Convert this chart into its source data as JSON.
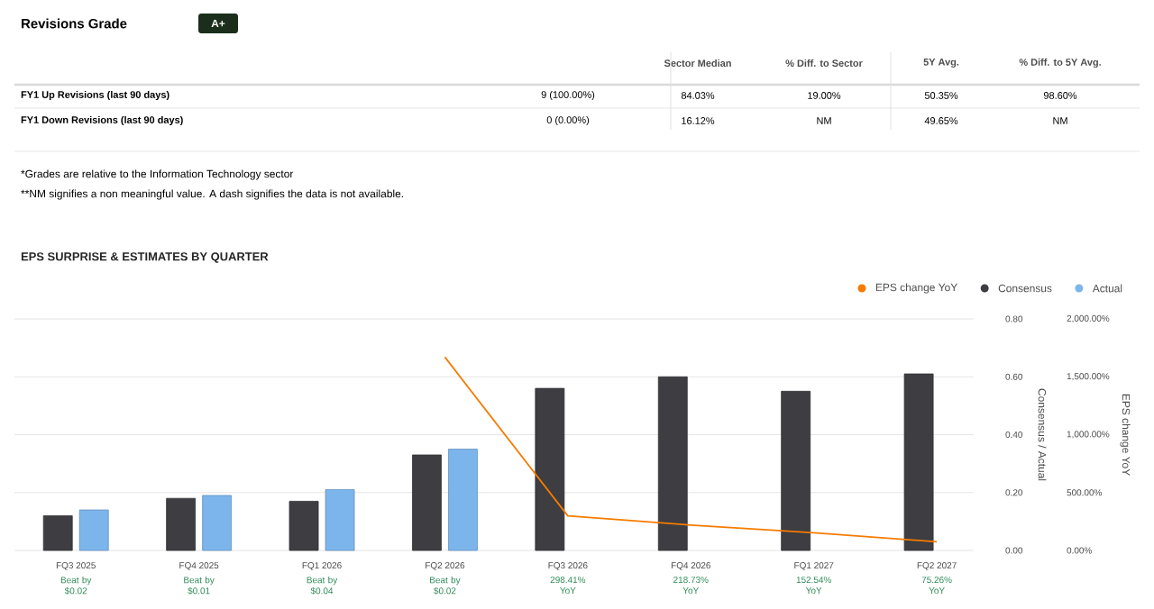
{
  "chart_data": [
    {
      "type": "other",
      "title": "Revisions Grade",
      "annotations": [
        "A+",
        "Sector Median",
        "% Diff. to Sector",
        "5Y Avg.",
        "% Diff. to 5Y Avg.",
        "FY1 Up Revisions (last 90 days)",
        "9 (100.00%)",
        "84.03%",
        "19.00%",
        "50.35%",
        "98.60%",
        "FY1 Down Revisions (last 90 days)",
        "0 (0.00%)",
        "16.12%",
        "NM",
        "49.65%",
        "NM",
        "*Grades are relative to the Information Technology sector",
        "**NM signifies a non meaningful value. A dash signifies the data is not available."
      ]
    },
    {
      "type": "bar",
      "title": "EPS SURPRISE & ESTIMATES BY QUARTER",
      "categories": [
        "FQ3 2025",
        "FQ4 2025",
        "FQ1 2026",
        "FQ2 2026",
        "FQ3 2026",
        "FQ4 2026",
        "FQ1 2027",
        "FQ2 2027"
      ],
      "series": [
        {
          "name": "EPS change YoY",
          "type": "line",
          "axis": "y2",
          "color": "#f57c00",
          "values": [
            null,
            null,
            null,
            1670,
            298.41,
            218.73,
            152.54,
            75.26
          ]
        },
        {
          "name": "Consensus",
          "color": "#3d3d42",
          "values": [
            0.12,
            0.18,
            0.17,
            0.33,
            0.56,
            0.6,
            0.55,
            0.61
          ]
        },
        {
          "name": "Actual",
          "color": "#7cb5ec",
          "values": [
            0.14,
            0.19,
            0.21,
            0.35,
            null,
            null,
            null,
            null
          ]
        }
      ],
      "ylim": [
        0,
        0.8
      ],
      "yticks": [
        {
          "value": 0,
          "label": "0.00"
        },
        {
          "value": 0.2,
          "label": "0.20"
        },
        {
          "value": 0.4,
          "label": "0.40"
        },
        {
          "value": 0.6,
          "label": "0.60"
        },
        {
          "value": 0.8,
          "label": "0.80"
        }
      ],
      "y2lim": [
        0,
        2000
      ],
      "y2ticks": [
        {
          "value": 0,
          "label": "0.00%"
        },
        {
          "value": 500,
          "label": "500.00%"
        },
        {
          "value": 1000,
          "label": "1,000.00%"
        },
        {
          "value": 1500,
          "label": "1,500.00%"
        },
        {
          "value": 2000,
          "label": "2,000.00%"
        }
      ],
      "ylabel": "Consensus / Actual",
      "y2label": "EPS change YoY",
      "grid": "y",
      "legend": "top right",
      "annotations": [
        "Beat by $0.02",
        "Beat by $0.01",
        "Beat by $0.04",
        "Beat by $0.02",
        "298.41% YoY",
        "218.73% YoY",
        "152.54% YoY",
        "75.26% YoY"
      ]
    }
  ]
}
